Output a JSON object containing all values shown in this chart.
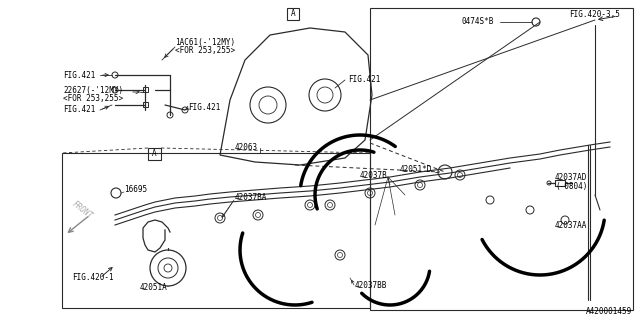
{
  "bg_color": "#ffffff",
  "line_color": "#2a2a2a",
  "thick_lw": 2.2,
  "thin_lw": 0.7,
  "mid_lw": 1.0,
  "doc_number": "A420001459",
  "font_size": 5.5,
  "labels": {
    "1AC61": "1AC61(-’12MY)",
    "1AC61_2": "<FOR 253,255>",
    "22627": "22627(-’12MY)",
    "22627_2": "<FOR 253,255>",
    "FIG421_a": "FIG.421",
    "FIG421_b": "FIG.421",
    "FIG421_c": "FIG.421",
    "FIG421_d": "FIG.421",
    "FIG420_35": "FIG.420-3,5",
    "FIG420_1": "FIG.420-1",
    "0474S": "0474S*B",
    "42063": "42063",
    "42051D": "42051*D",
    "42037AD": "42037AD",
    "42037AD_2": "(-0804)",
    "42037AA": "42037AA",
    "42037B": "42037B",
    "42037BA": "42037BA",
    "42037BB": "42037BB",
    "42051A": "42051A",
    "16695": "16695",
    "FRONT": "FRONT",
    "A_top": "A",
    "A_bottom": "A"
  }
}
